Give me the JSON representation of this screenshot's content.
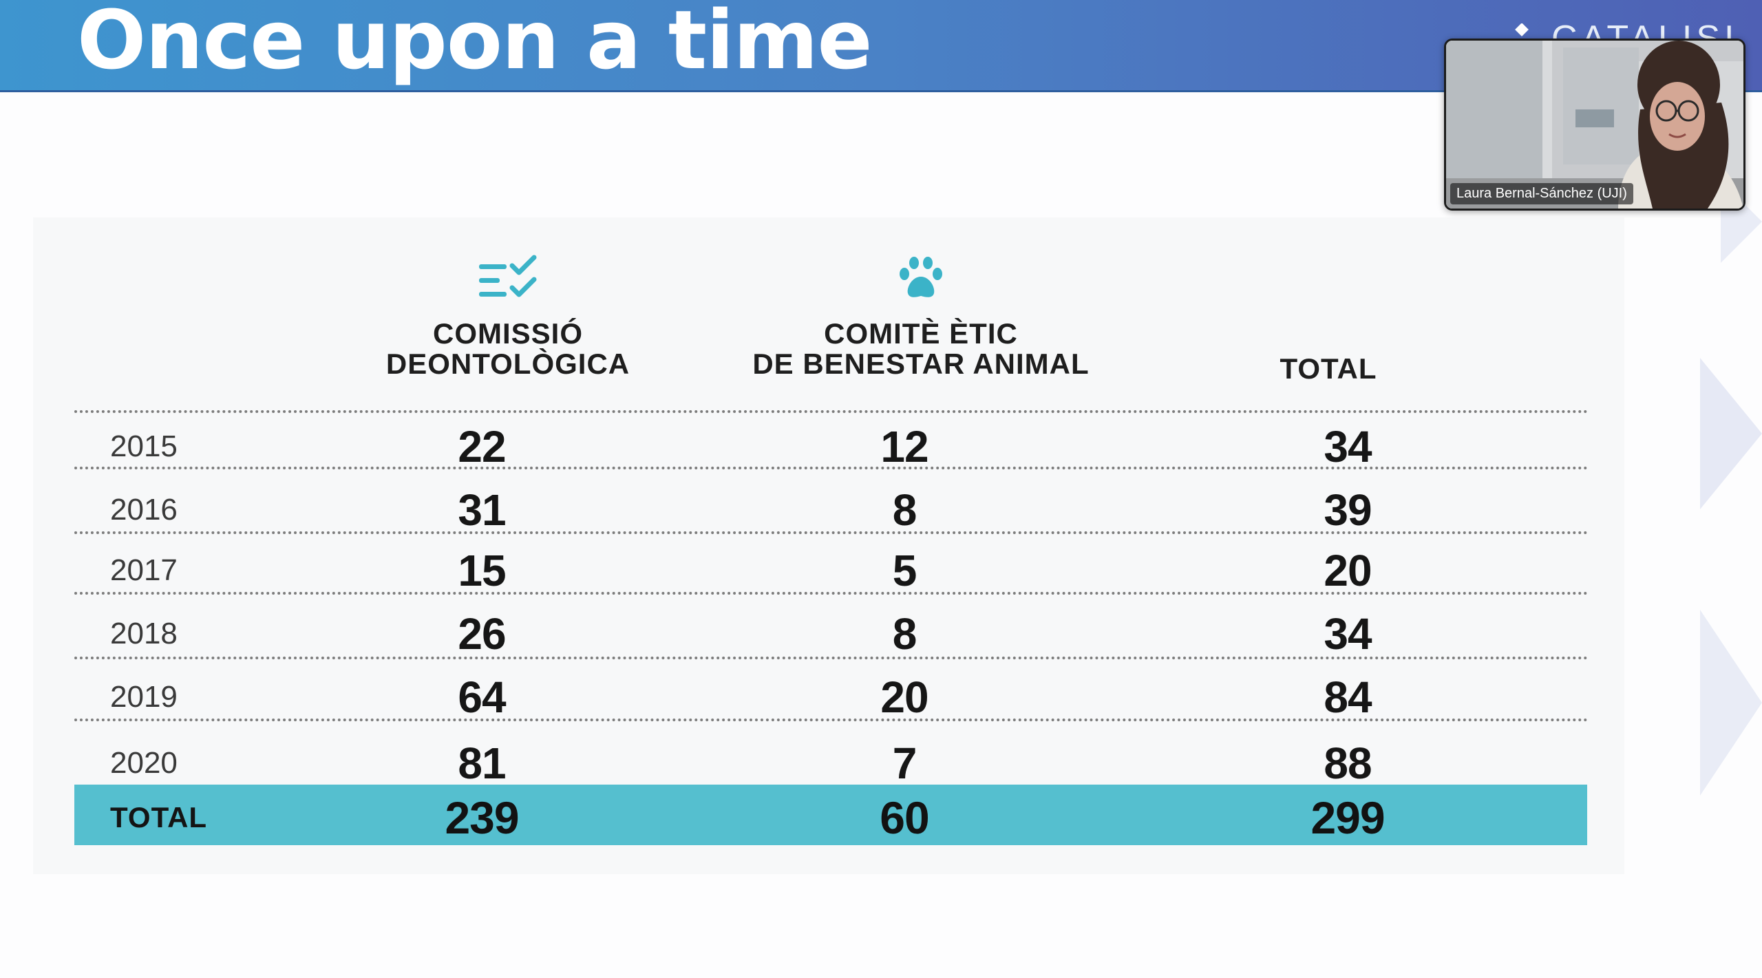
{
  "slide": {
    "title": "Once upon a time",
    "logo_text": "CATALISI"
  },
  "video": {
    "participant_name": "Laura Bernal-Sánchez (UJI)"
  },
  "table": {
    "headers": {
      "comissio": "COMISSIÓ\nDEONTOLÒGICA",
      "comite": "COMITÈ ÈTIC\nDE BENESTAR ANIMAL",
      "total": "TOTAL"
    },
    "header_icons": {
      "comissio": "checklist-icon",
      "comite": "paw-icon"
    },
    "rows": [
      {
        "year": "2015",
        "comissio": "22",
        "comite": "12",
        "total": "34"
      },
      {
        "year": "2016",
        "comissio": "31",
        "comite": "8",
        "total": "39"
      },
      {
        "year": "2017",
        "comissio": "15",
        "comite": "5",
        "total": "20"
      },
      {
        "year": "2018",
        "comissio": "26",
        "comite": "8",
        "total": "34"
      },
      {
        "year": "2019",
        "comissio": "64",
        "comite": "20",
        "total": "84"
      },
      {
        "year": "2020",
        "comissio": "81",
        "comite": "7",
        "total": "88"
      }
    ],
    "total_row": {
      "label": "TOTAL",
      "comissio": "239",
      "comite": "60",
      "total": "299"
    }
  },
  "colors": {
    "header_gradient_start": "#3e95cf",
    "header_gradient_end": "#4f60b4",
    "accent_teal": "#55bfcf",
    "icon_teal": "#3bb3c8"
  }
}
